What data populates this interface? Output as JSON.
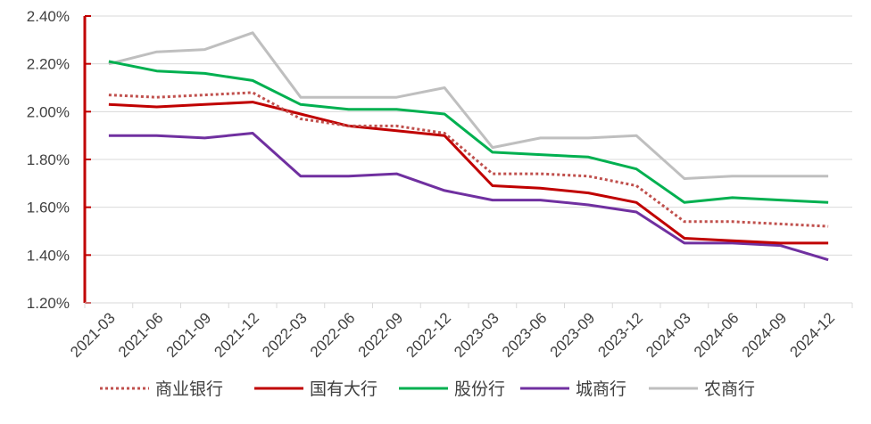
{
  "chart_data": {
    "type": "line",
    "title": "",
    "xlabel": "",
    "ylabel": "",
    "categories": [
      "2021-03",
      "2021-06",
      "2021-09",
      "2021-12",
      "2022-03",
      "2022-06",
      "2022-09",
      "2022-12",
      "2023-03",
      "2023-06",
      "2023-09",
      "2023-12",
      "2024-03",
      "2024-06",
      "2024-09",
      "2024-12"
    ],
    "ylim": [
      1.2,
      2.4
    ],
    "yticks": [
      1.2,
      1.4,
      1.6,
      1.8,
      2.0,
      2.2,
      2.4
    ],
    "ytick_labels": [
      "1.20%",
      "1.40%",
      "1.60%",
      "1.80%",
      "2.00%",
      "2.20%",
      "2.40%"
    ],
    "grid": "horizontal",
    "legend_position": "bottom",
    "axis_color": "#c00000",
    "series": [
      {
        "name": "商业银行",
        "color": "#c0504d",
        "style": "dotted",
        "values": [
          2.07,
          2.06,
          2.07,
          2.08,
          1.97,
          1.94,
          1.94,
          1.91,
          1.74,
          1.74,
          1.73,
          1.69,
          1.54,
          1.54,
          1.53,
          1.52
        ]
      },
      {
        "name": "国有大行",
        "color": "#c00000",
        "style": "solid",
        "values": [
          2.03,
          2.02,
          2.03,
          2.04,
          1.99,
          1.94,
          1.92,
          1.9,
          1.69,
          1.68,
          1.66,
          1.62,
          1.47,
          1.46,
          1.45,
          1.45
        ]
      },
      {
        "name": "股份行",
        "color": "#00b050",
        "style": "solid",
        "values": [
          2.21,
          2.17,
          2.16,
          2.13,
          2.03,
          2.01,
          2.01,
          1.99,
          1.83,
          1.82,
          1.81,
          1.76,
          1.62,
          1.64,
          1.63,
          1.62
        ]
      },
      {
        "name": "城商行",
        "color": "#7030a0",
        "style": "solid",
        "values": [
          1.9,
          1.9,
          1.89,
          1.91,
          1.73,
          1.73,
          1.74,
          1.67,
          1.63,
          1.63,
          1.61,
          1.58,
          1.45,
          1.45,
          1.44,
          1.38
        ]
      },
      {
        "name": "农商行",
        "color": "#bfbfbf",
        "style": "solid",
        "values": [
          2.2,
          2.25,
          2.26,
          2.33,
          2.06,
          2.06,
          2.06,
          2.1,
          1.85,
          1.89,
          1.89,
          1.9,
          1.72,
          1.73,
          1.73,
          1.73
        ]
      }
    ]
  }
}
